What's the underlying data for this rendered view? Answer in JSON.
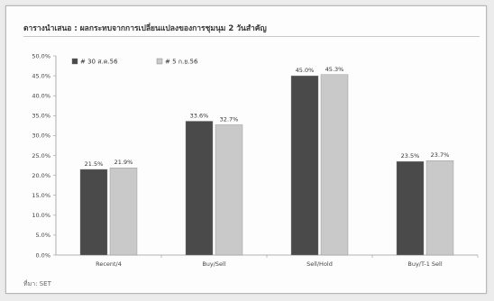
{
  "page": {
    "title": "ตารางนำเสนอ : ผลกระทบจากการเปลี่ยนแปลงของการชุมนุม 2 วันสำคัญ",
    "source": "ที่มา: SET"
  },
  "colors": {
    "series_dark": "#4a4a4a",
    "series_light": "#c9c9c9",
    "grid": "#d6d6d6",
    "axis": "#999999"
  },
  "chart_data": {
    "type": "bar",
    "categories": [
      "Recent/4",
      "Buy/Sell",
      "Sell/Hold",
      "Buy/T-1 Sell"
    ],
    "series": [
      {
        "name": "# 30 ส.ค.56",
        "values": [
          21.5,
          33.6,
          45.0,
          23.5
        ]
      },
      {
        "name": "# 5 ก.ย.56",
        "values": [
          21.9,
          32.7,
          45.3,
          23.7
        ]
      }
    ],
    "data_labels": [
      [
        "21.5%",
        "33.6%",
        "45.0%",
        "23.5%"
      ],
      [
        "21.9%",
        "32.7%",
        "45.3%",
        "23.7%"
      ]
    ],
    "y_ticks": [
      "0.0%",
      "5.0%",
      "10.0%",
      "15.0%",
      "20.0%",
      "25.0%",
      "30.0%",
      "35.0%",
      "40.0%",
      "45.0%",
      "50.0%"
    ],
    "ylim": [
      0,
      50
    ],
    "grid": false,
    "legend_position": "top-left"
  }
}
